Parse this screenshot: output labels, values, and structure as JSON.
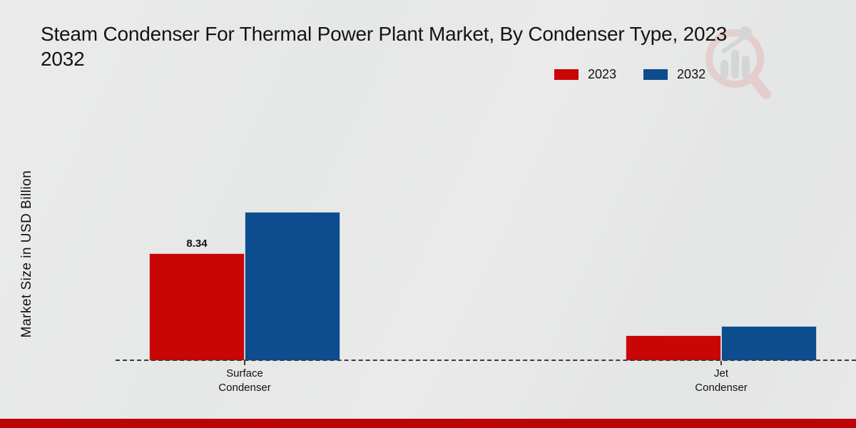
{
  "title": {
    "line1": "Steam Condenser For Thermal Power Plant Market, By Condenser Type, 2023",
    "line2": "2032"
  },
  "y_axis_label": "Market Size in USD Billion",
  "value_label": "8.34",
  "legend": {
    "items": [
      {
        "label": "2023",
        "color": "#c90505"
      },
      {
        "label": "2032",
        "color": "#0d4c8f"
      }
    ]
  },
  "category_labels": {
    "cat0_line1": "Surface",
    "cat0_line2": "Condenser",
    "cat1_line1": "Jet",
    "cat1_line2": "Condenser"
  },
  "colors": {
    "bar_2023": "#c90505",
    "bar_2032": "#0d4c8f",
    "footer_bar": "#bd0404",
    "baseline": "#3c3c3c",
    "background": "#e8e8e8"
  },
  "watermark_icon": "market-research-magnifier-logo",
  "chart_data": {
    "type": "bar",
    "title": "Steam Condenser For Thermal Power Plant Market, By Condenser Type, 2023 2032",
    "categories": [
      "Surface Condenser",
      "Jet Condenser"
    ],
    "series": [
      {
        "name": "2023",
        "color": "#c90505",
        "values": [
          8.34,
          2.0
        ]
      },
      {
        "name": "2032",
        "color": "#0d4c8f",
        "values": [
          11.55,
          2.7
        ]
      }
    ],
    "data_labels_visible": [
      "8.34"
    ],
    "xlabel": "",
    "ylabel": "Market Size in USD Billion",
    "ylim": [
      0,
      12.5
    ],
    "y_ticks_visible": false,
    "grid": false,
    "legend_position": "top-right",
    "baseline_style": "dashed"
  }
}
